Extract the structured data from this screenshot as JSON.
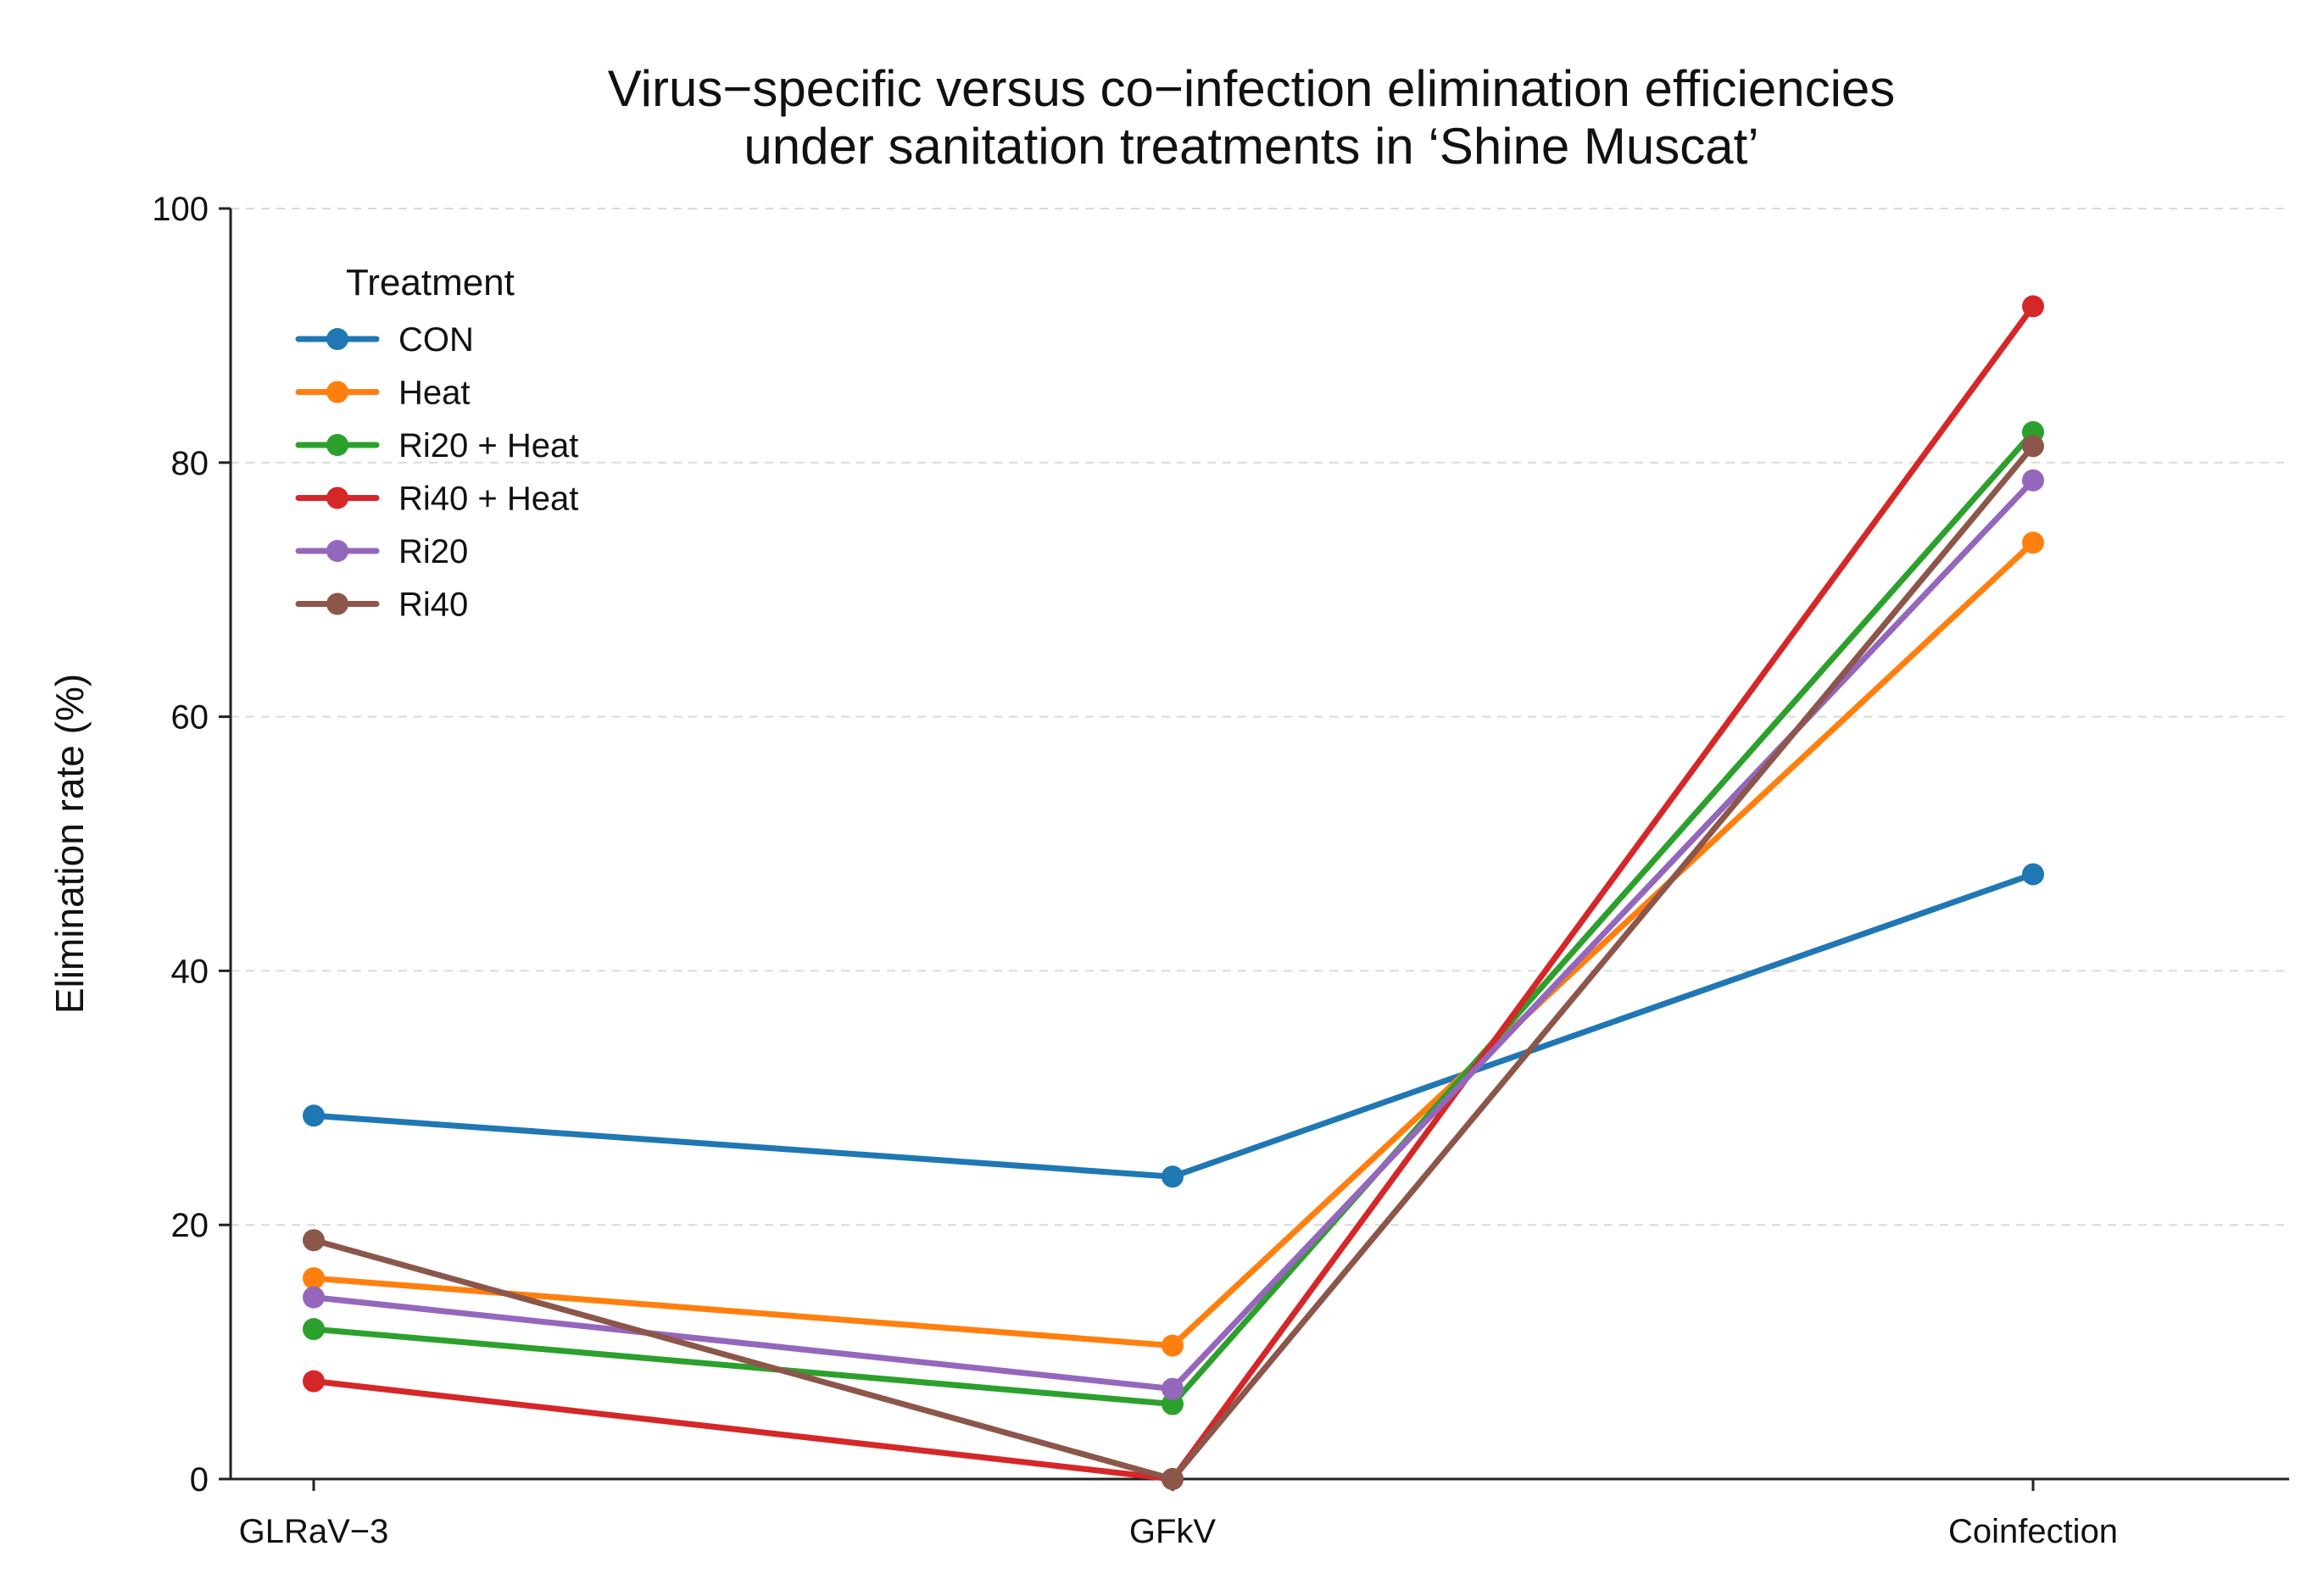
{
  "chart_data": {
    "type": "line",
    "title": "Virus−specific versus co−infection elimination efficiencies\nunder sanitation treatments in ‘Shine Muscat’",
    "xlabel": "",
    "ylabel": "Elimination rate (%)",
    "categories": [
      "GLRaV−3",
      "GFkV",
      "Coinfection"
    ],
    "ylim": [
      0,
      100
    ],
    "yticks": [
      0,
      20,
      40,
      60,
      80,
      100
    ],
    "grid": "horizontal dashed",
    "legend": {
      "title": "Treatment",
      "placement": "upper-left"
    },
    "series": [
      {
        "name": "CON",
        "color": "#1f77b4",
        "values": [
          28.6,
          23.8,
          47.6
        ]
      },
      {
        "name": "Heat",
        "color": "#ff7f0e",
        "values": [
          15.8,
          10.5,
          73.7
        ]
      },
      {
        "name": "Ri20 + Heat",
        "color": "#2ca02c",
        "values": [
          11.8,
          5.9,
          82.4
        ]
      },
      {
        "name": "Ri40 + Heat",
        "color": "#d62728",
        "values": [
          7.7,
          0.0,
          92.3
        ]
      },
      {
        "name": "Ri20",
        "color": "#9467bd",
        "values": [
          14.3,
          7.1,
          78.6
        ]
      },
      {
        "name": "Ri40",
        "color": "#8c564b",
        "values": [
          18.8,
          0.0,
          81.3
        ]
      }
    ]
  }
}
